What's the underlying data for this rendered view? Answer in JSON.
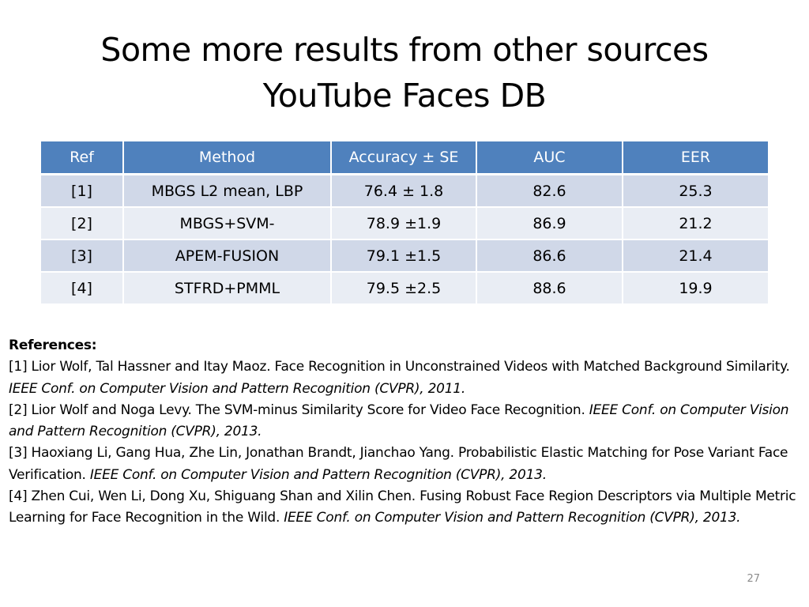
{
  "slide": {
    "title_line1": "Some more results from other sources",
    "title_line2": "YouTube Faces DB",
    "page_number": "27"
  },
  "table": {
    "headers": [
      "Ref",
      "Method",
      "Accuracy ± SE",
      "AUC",
      "EER"
    ],
    "rows": [
      [
        "[1]",
        "MBGS L2 mean, LBP",
        "76.4 ± 1.8",
        "82.6",
        "25.3"
      ],
      [
        "[2]",
        "MBGS+SVM-",
        "78.9 ±1.9",
        "86.9",
        "21.2"
      ],
      [
        "[3]",
        "APEM-FUSION",
        "79.1 ±1.5",
        "86.6",
        "21.4"
      ],
      [
        "[4]",
        "STFRD+PMML",
        "79.5 ±2.5",
        "88.6",
        "19.9"
      ]
    ],
    "colors": {
      "header_bg": "#4f81bd",
      "row_odd_bg": "#d0d8e8",
      "row_even_bg": "#e9edf4"
    }
  },
  "references": {
    "heading": "References:",
    "items": [
      {
        "authors": "[1]  Lior Wolf, Tal Hassner and Itay Maoz. Face Recognition in Unconstrained Videos with Matched Background   Similarity. ",
        "venue": "IEEE Conf. on Computer Vision and Pattern Recognition (CVPR), 2011."
      },
      {
        "authors": "[2]  Lior Wolf and Noga Levy. The SVM-minus Similarity Score for Video Face Recognition. ",
        "venue": "IEEE Conf. on Computer Vision and Pattern Recognition (CVPR), 2013."
      },
      {
        "authors": "[3]  Haoxiang Li, Gang Hua, Zhe Lin, Jonathan Brandt, Jianchao Yang. Probabilistic Elastic Matching for Pose Variant Face Verification. ",
        "venue": "IEEE Conf. on Computer Vision and Pattern Recognition (CVPR), 2013."
      },
      {
        "authors": "[4]  Zhen Cui, Wen Li, Dong Xu, Shiguang Shan and Xilin Chen. Fusing Robust Face Region Descriptors via Multiple Metric Learning for Face Recognition in the Wild. ",
        "venue": "IEEE Conf. on Computer Vision and Pattern Recognition (CVPR), 2013."
      }
    ]
  }
}
